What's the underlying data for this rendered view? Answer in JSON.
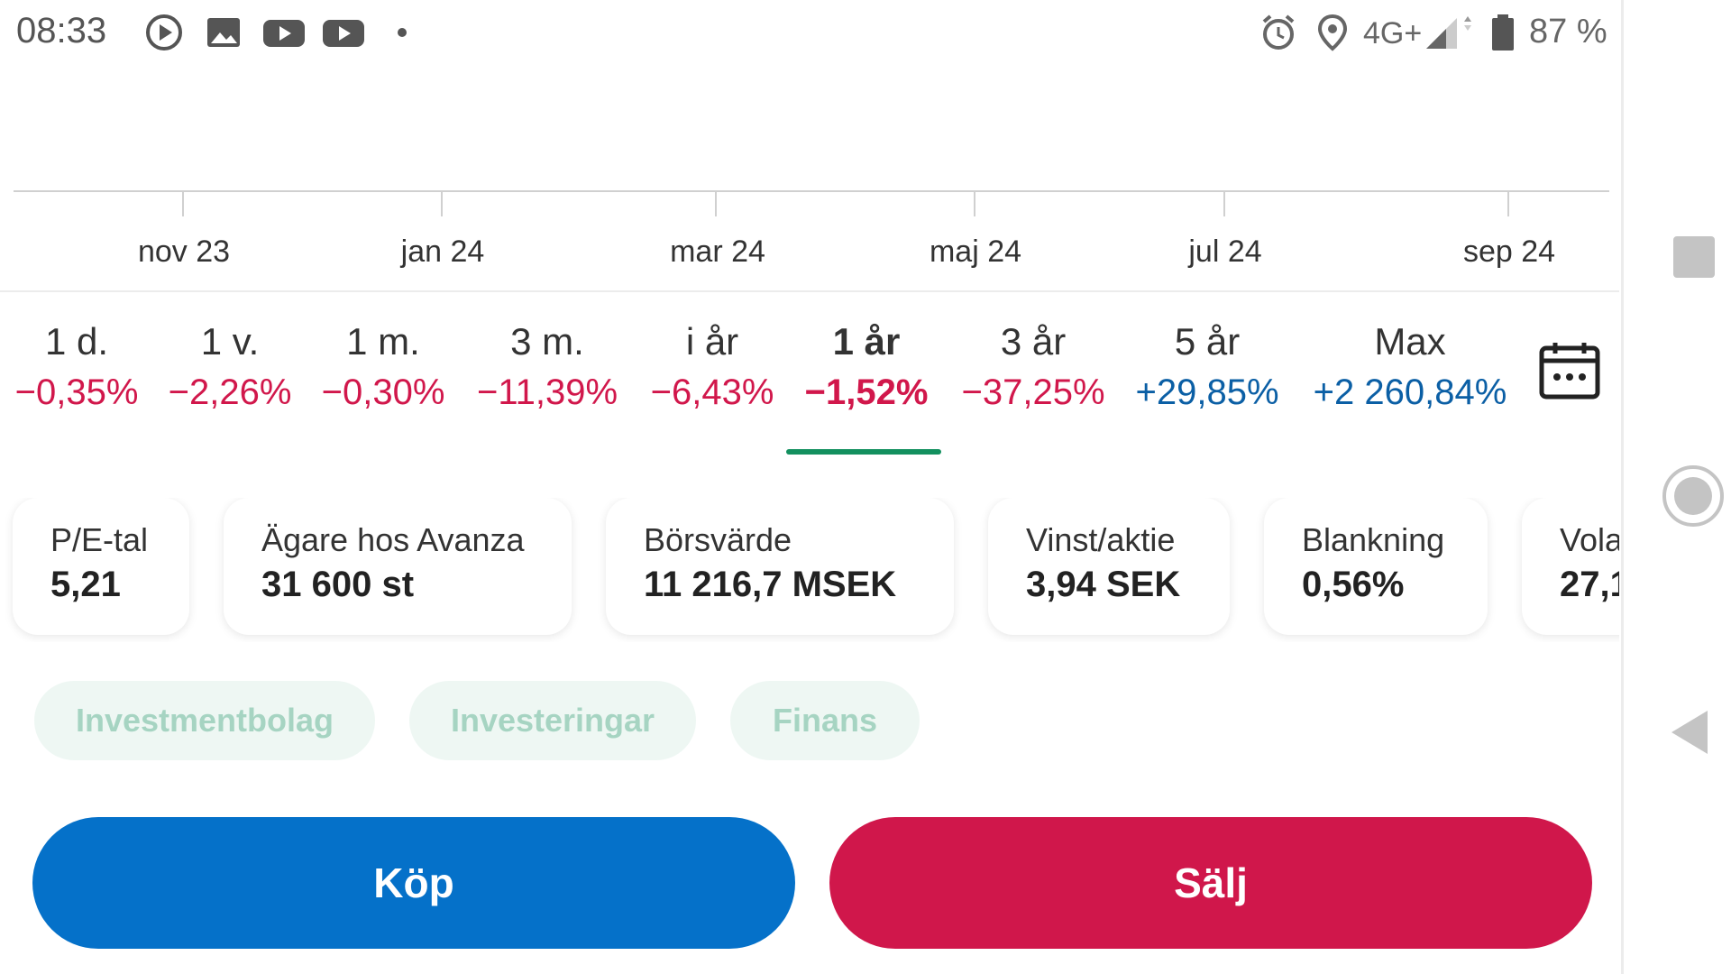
{
  "status_bar": {
    "time": "08:33",
    "network": "4G+",
    "battery": "87 %",
    "icons": [
      "play-circle-icon",
      "image-icon",
      "youtube-icon",
      "youtube-icon",
      "dot-icon",
      "alarm-icon",
      "location-icon",
      "signal-icon",
      "battery-icon"
    ]
  },
  "axis": {
    "labels": [
      "nov 23",
      "jan 24",
      "mar 24",
      "maj 24",
      "jul 24",
      "sep 24"
    ]
  },
  "periods": [
    {
      "label": "1 d.",
      "change": "−0,35%",
      "direction": "down"
    },
    {
      "label": "1 v.",
      "change": "−2,26%",
      "direction": "down"
    },
    {
      "label": "1 m.",
      "change": "−0,30%",
      "direction": "down"
    },
    {
      "label": "3 m.",
      "change": "−11,39%",
      "direction": "down"
    },
    {
      "label": "i år",
      "change": "−6,43%",
      "direction": "down"
    },
    {
      "label": "1 år",
      "change": "−1,52%",
      "direction": "down",
      "active": true
    },
    {
      "label": "3 år",
      "change": "−37,25%",
      "direction": "down"
    },
    {
      "label": "5 år",
      "change": "+29,85%",
      "direction": "up"
    },
    {
      "label": "Max",
      "change": "+2 260,84%",
      "direction": "up"
    }
  ],
  "stats": [
    {
      "label": "P/E-tal",
      "value": "5,21"
    },
    {
      "label": "Ägare hos Avanza",
      "value": "31 600 st"
    },
    {
      "label": "Börsvärde",
      "value": "11 216,7 MSEK"
    },
    {
      "label": "Vinst/aktie",
      "value": "3,94 SEK"
    },
    {
      "label": "Blankning",
      "value": "0,56%"
    },
    {
      "label": "Vola",
      "value": "27,1"
    }
  ],
  "tags": [
    "Investmentbolag",
    "Investeringar",
    "Finans"
  ],
  "actions": {
    "buy_label": "Köp",
    "sell_label": "Sälj"
  },
  "colors": {
    "negative": "#d1174b",
    "positive": "#0b5fa5",
    "buy": "#0571c9",
    "sell": "#d0174b",
    "active_underline": "#13905f",
    "tag_bg": "#eef7f3",
    "tag_text": "#a6d4c2"
  }
}
